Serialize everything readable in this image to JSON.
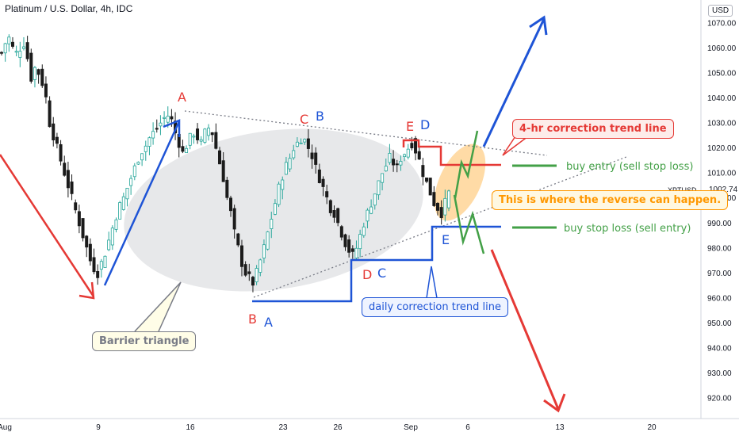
{
  "header": {
    "title": "Platinum / U.S. Dollar, 4h, IDC",
    "currency": "USD",
    "symbol_tag": "XPTUSD",
    "last_price": "1002.74"
  },
  "chart_data": {
    "type": "candlestick",
    "y_ticks": [
      "1070.00",
      "1060.00",
      "1050.00",
      "1040.00",
      "1030.00",
      "1020.00",
      "1010.00",
      "1000.00",
      "990.00",
      "980.00",
      "970.00",
      "960.00",
      "950.00",
      "940.00",
      "930.00",
      "920.00"
    ],
    "x_ticks": [
      "Aug",
      "9",
      "16",
      "23",
      "26",
      "Sep",
      "6",
      "13",
      "20"
    ],
    "ylim": [
      915,
      1075
    ],
    "close_path": [
      1058,
      1062,
      1064,
      1060,
      1058,
      1060,
      1062,
      1056,
      1048,
      1052,
      1050,
      1046,
      1040,
      1030,
      1025,
      1020,
      1015,
      1010,
      1005,
      1000,
      995,
      990,
      985,
      980,
      975,
      972,
      970,
      974,
      978,
      983,
      988,
      993,
      997,
      1000,
      1004,
      1008,
      1012,
      1016,
      1019,
      1021,
      1024,
      1026,
      1028,
      1030,
      1032,
      1033,
      1031,
      1026,
      1022,
      1018,
      1021,
      1024,
      1026,
      1024,
      1022,
      1026,
      1028,
      1026,
      1020,
      1014,
      1008,
      1000,
      994,
      986,
      980,
      974,
      970,
      968,
      966,
      970,
      975,
      980,
      986,
      992,
      998,
      1004,
      1009,
      1013,
      1016,
      1020,
      1022,
      1024,
      1023,
      1020,
      1017,
      1012,
      1008,
      1004,
      1000,
      996,
      994,
      990,
      986,
      982,
      979,
      977,
      980,
      985,
      990,
      994,
      998,
      1002,
      1006,
      1010,
      1013,
      1016,
      1014,
      1012,
      1016,
      1018,
      1020,
      1022,
      1019,
      1015,
      1010,
      1006,
      1002,
      998,
      996,
      994,
      998,
      1002
    ],
    "annotations": {
      "wave_labels": [
        "A",
        "C",
        "B",
        "E",
        "D",
        "B",
        "A",
        "D",
        "C",
        "E"
      ],
      "callout_4hr": "4-hr correction trend line",
      "callout_buy_entry": "buy entry (sell stop loss)",
      "callout_reverse": "This is where the reverse can happen.",
      "callout_buy_stop": "buy stop loss (sell entry)",
      "callout_daily": "daily correction trend line",
      "callout_barrier": "Barrier triangle"
    },
    "colors": {
      "up_candle": "#26a69a",
      "down_candle": "#1b1b1b",
      "red": "#e53935",
      "blue": "#1e54d6",
      "green": "#43a047",
      "orange": "#ff9800"
    },
    "grid": false
  }
}
